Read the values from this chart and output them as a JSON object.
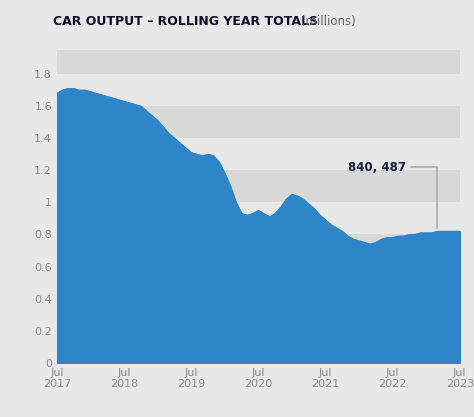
{
  "title_bold": "CAR OUTPUT – ROLLING YEAR TOTALS",
  "title_normal": " (millions)",
  "background_color": "#e8e8e8",
  "fill_color": "#2e86c8",
  "line_color": "#2e86c8",
  "band_colors": [
    "#e8e8e8",
    "#d8d8d8"
  ],
  "annotation_text": "840, 487",
  "annotation_color": "#1a1a3a",
  "tick_color": "#888888",
  "yticks": [
    0,
    0.2,
    0.4,
    0.6,
    0.8,
    1.0,
    1.2,
    1.4,
    1.6,
    1.8
  ],
  "xtick_labels": [
    "Jul\n2017",
    "Jul\n2018",
    "Jul\n2019",
    "Jul\n2020",
    "Jul\n2021",
    "Jul\n2022",
    "Jul\n2023"
  ],
  "ylim": [
    0,
    1.95
  ],
  "xlim": [
    0,
    72
  ],
  "x": [
    0,
    1,
    2,
    3,
    4,
    5,
    6,
    7,
    8,
    9,
    10,
    11,
    12,
    13,
    14,
    15,
    16,
    17,
    18,
    19,
    20,
    21,
    22,
    23,
    24,
    25,
    26,
    27,
    28,
    29,
    30,
    31,
    32,
    33,
    34,
    35,
    36,
    37,
    38,
    39,
    40,
    41,
    42,
    43,
    44,
    45,
    46,
    47,
    48,
    49,
    50,
    51,
    52,
    53,
    54,
    55,
    56,
    57,
    58,
    59,
    60,
    61,
    62,
    63,
    64,
    65,
    66,
    67,
    68,
    69,
    70,
    71,
    72
  ],
  "y": [
    1.68,
    1.7,
    1.71,
    1.71,
    1.7,
    1.7,
    1.69,
    1.68,
    1.67,
    1.66,
    1.65,
    1.64,
    1.63,
    1.62,
    1.61,
    1.6,
    1.57,
    1.54,
    1.51,
    1.47,
    1.43,
    1.4,
    1.37,
    1.34,
    1.31,
    1.3,
    1.29,
    1.3,
    1.29,
    1.25,
    1.18,
    1.1,
    1.0,
    0.93,
    0.92,
    0.93,
    0.95,
    0.93,
    0.91,
    0.93,
    0.97,
    1.02,
    1.05,
    1.04,
    1.02,
    0.99,
    0.96,
    0.92,
    0.89,
    0.86,
    0.84,
    0.82,
    0.79,
    0.77,
    0.76,
    0.75,
    0.74,
    0.75,
    0.77,
    0.78,
    0.78,
    0.79,
    0.79,
    0.8,
    0.8,
    0.81,
    0.81,
    0.81,
    0.82,
    0.82,
    0.82,
    0.82,
    0.82
  ]
}
